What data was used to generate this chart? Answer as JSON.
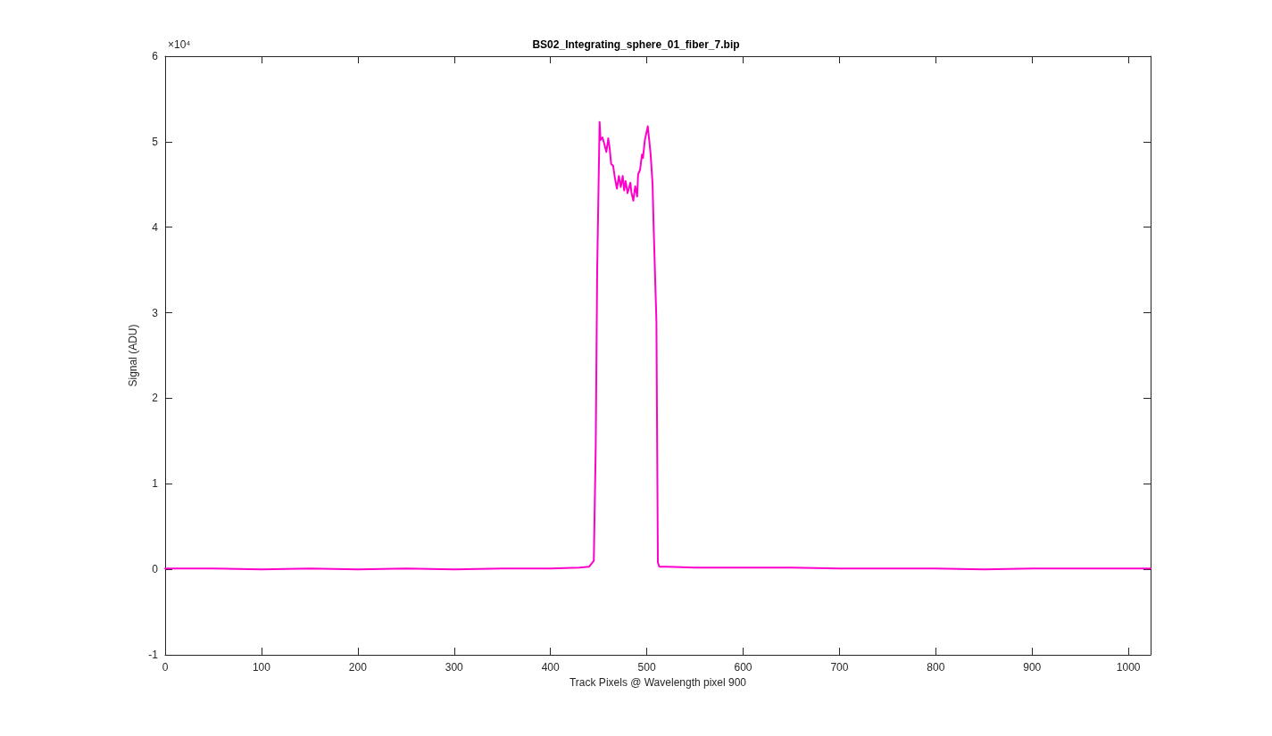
{
  "chart_data": {
    "type": "line",
    "title": "BS02_Integrating_sphere_01_fiber_7.bip",
    "xlabel": "Track Pixels @ Wavelength pixel 900",
    "ylabel": "Signal (ADU)",
    "annotations": [
      "×10⁴"
    ],
    "xlim": [
      0,
      1023
    ],
    "xticks": [
      0,
      100,
      200,
      300,
      400,
      500,
      600,
      700,
      800,
      900,
      1000
    ],
    "ylim": [
      -1,
      6
    ],
    "yticks": [
      -1,
      0,
      1,
      2,
      3,
      4,
      5,
      6
    ],
    "grid": false,
    "marker": "none",
    "line_style": "solid",
    "series": [
      {
        "color": "#ff00cc",
        "x": [
          0,
          50,
          100,
          150,
          200,
          250,
          300,
          350,
          400,
          430,
          440,
          445,
          447,
          448.5,
          451,
          452,
          454,
          456,
          458,
          460,
          461.5,
          463,
          465,
          467,
          469,
          471,
          473,
          475,
          476.5,
          478,
          480,
          483,
          484,
          486,
          488,
          490,
          491,
          493,
          495,
          496,
          498,
          501,
          502.5,
          504,
          506,
          507,
          510,
          511.5,
          513,
          520,
          550,
          600,
          650,
          700,
          750,
          800,
          850,
          900,
          950,
          1000,
          1023
        ],
        "values": [
          0.01,
          0.01,
          0,
          0.01,
          0,
          0.01,
          0,
          0.01,
          0.01,
          0.02,
          0.03,
          0.1,
          1.44,
          3.5,
          5.23,
          5.02,
          5.05,
          4.97,
          4.88,
          5.04,
          4.92,
          4.74,
          4.72,
          4.57,
          4.45,
          4.6,
          4.47,
          4.6,
          4.43,
          4.54,
          4.4,
          4.52,
          4.41,
          4.31,
          4.48,
          4.36,
          4.62,
          4.67,
          4.85,
          4.81,
          5.02,
          5.18,
          5.02,
          4.85,
          4.5,
          4.05,
          2.9,
          0.08,
          0.03,
          0.03,
          0.02,
          0.02,
          0.02,
          0.01,
          0.01,
          0.01,
          0,
          0.01,
          0.01,
          0.01,
          0.01
        ]
      }
    ]
  }
}
